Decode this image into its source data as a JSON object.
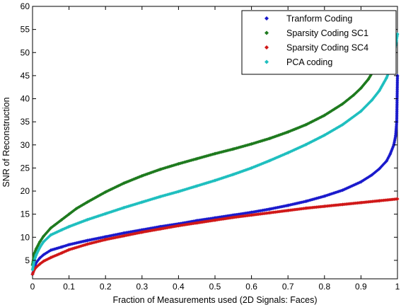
{
  "chart_data": {
    "type": "scatter",
    "title": "",
    "xlabel": "Fraction of Measurements used (2D Signals: Faces)",
    "ylabel": "SNR of Reconstruction",
    "xlim": [
      0,
      1
    ],
    "ylim": [
      1,
      60
    ],
    "xticks": [
      0,
      0.1,
      0.2,
      0.3,
      0.4,
      0.5,
      0.6,
      0.7,
      0.8,
      0.9,
      1
    ],
    "xtick_labels": [
      "0",
      "0.1",
      "0.2",
      "0.3",
      "0.4",
      "0.5",
      "0.6",
      "0.7",
      "0.8",
      "0.9",
      "1"
    ],
    "yticks": [
      5,
      10,
      15,
      20,
      25,
      30,
      35,
      40,
      45,
      50,
      55,
      60
    ],
    "ytick_labels": [
      "5",
      "10",
      "15",
      "20",
      "25",
      "30",
      "35",
      "40",
      "45",
      "50",
      "55",
      "60"
    ],
    "grid": false,
    "legend": "top-right",
    "marker": "diamond",
    "series": [
      {
        "name": "Tranform Coding",
        "color": "#1a1acc",
        "x": [
          0,
          0.005,
          0.01,
          0.02,
          0.03,
          0.05,
          0.08,
          0.1,
          0.15,
          0.2,
          0.25,
          0.3,
          0.35,
          0.4,
          0.45,
          0.5,
          0.55,
          0.6,
          0.65,
          0.7,
          0.75,
          0.8,
          0.85,
          0.9,
          0.93,
          0.95,
          0.97,
          0.98,
          0.99,
          0.995,
          0.998,
          1
        ],
        "y": [
          2,
          3.5,
          4.5,
          5.5,
          6.2,
          7.2,
          7.9,
          8.4,
          9.3,
          10.1,
          10.9,
          11.6,
          12.3,
          12.9,
          13.6,
          14.2,
          14.8,
          15.4,
          16.1,
          16.9,
          17.8,
          18.9,
          20.2,
          22,
          23.5,
          24.8,
          26.5,
          28,
          30,
          32,
          35,
          45
        ]
      },
      {
        "name": "Sparsity Coding SC1",
        "color": "#1e7a1e",
        "x": [
          0,
          0.005,
          0.01,
          0.02,
          0.03,
          0.05,
          0.08,
          0.1,
          0.12,
          0.15,
          0.2,
          0.25,
          0.3,
          0.35,
          0.4,
          0.45,
          0.5,
          0.55,
          0.6,
          0.65,
          0.7,
          0.75,
          0.8,
          0.85,
          0.88,
          0.9,
          0.92,
          0.93,
          0.935
        ],
        "y": [
          4,
          6.5,
          7.5,
          9,
          10.2,
          12,
          13.8,
          15,
          16.2,
          17.6,
          19.8,
          21.7,
          23.3,
          24.7,
          25.9,
          27,
          28.1,
          29.1,
          30.2,
          31.4,
          32.8,
          34.4,
          36.4,
          38.9,
          40.8,
          42.3,
          44.2,
          45.5,
          47
        ]
      },
      {
        "name": "Sparsity Coding SC4",
        "color": "#d01818",
        "x": [
          0,
          0.005,
          0.01,
          0.02,
          0.03,
          0.05,
          0.08,
          0.1,
          0.15,
          0.2,
          0.25,
          0.3,
          0.35,
          0.4,
          0.45,
          0.5,
          0.55,
          0.6,
          0.65,
          0.7,
          0.75,
          0.8,
          0.85,
          0.9,
          0.95,
          1
        ],
        "y": [
          2,
          3,
          3.5,
          4.2,
          4.8,
          5.6,
          6.6,
          7.3,
          8.5,
          9.5,
          10.3,
          11.1,
          11.8,
          12.5,
          13.1,
          13.7,
          14.3,
          14.8,
          15.3,
          15.8,
          16.3,
          16.7,
          17.1,
          17.5,
          17.9,
          18.3
        ]
      },
      {
        "name": "PCA coding",
        "color": "#1fbfbf",
        "x": [
          0,
          0.005,
          0.01,
          0.02,
          0.03,
          0.05,
          0.08,
          0.1,
          0.15,
          0.2,
          0.25,
          0.3,
          0.35,
          0.4,
          0.45,
          0.5,
          0.55,
          0.6,
          0.65,
          0.7,
          0.75,
          0.8,
          0.85,
          0.9,
          0.93,
          0.95,
          0.97,
          0.98,
          0.99,
          1
        ],
        "y": [
          3,
          5,
          6.2,
          7.8,
          9,
          10.5,
          11.6,
          12.3,
          13.8,
          15.1,
          16.4,
          17.6,
          18.8,
          19.9,
          21.1,
          22.3,
          23.6,
          25,
          26.6,
          28.3,
          30.1,
          32.1,
          34.4,
          37.3,
          39.7,
          41.7,
          44.5,
          46.5,
          49.5,
          54
        ]
      }
    ]
  }
}
